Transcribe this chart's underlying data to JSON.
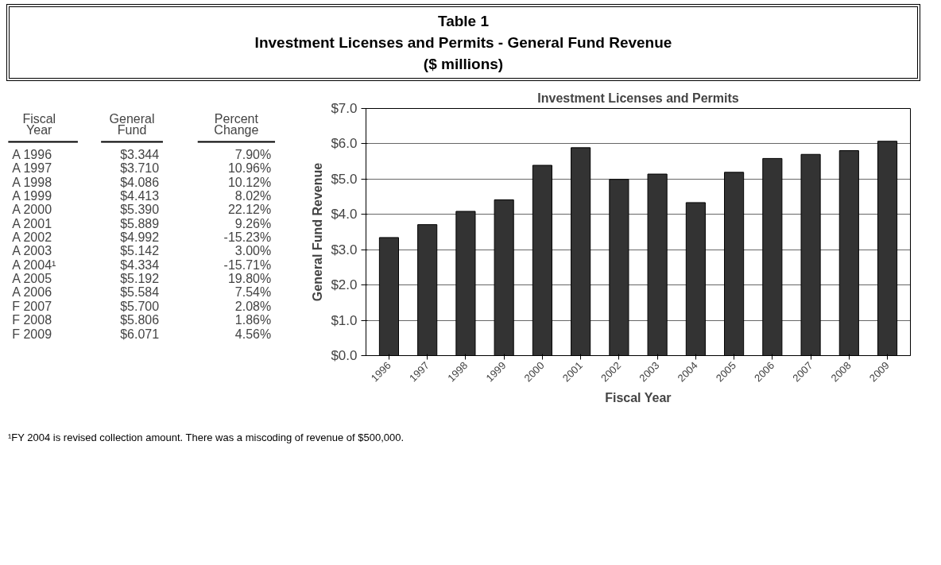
{
  "chart_data": {
    "type": "bar",
    "title": "Table 1\nInvestment Licenses and Permits - General Fund Revenue\n($ millions)",
    "subtitle": "Investment Licenses and Permits",
    "xlabel": "Fiscal Year",
    "ylabel": "General Fund Revenue",
    "categories": [
      "1996",
      "1997",
      "1998",
      "1999",
      "2000",
      "2001",
      "2002",
      "2003",
      "2004",
      "2005",
      "2006",
      "2007",
      "2008",
      "2009"
    ],
    "values": [
      3.344,
      3.71,
      4.086,
      4.413,
      5.39,
      5.889,
      4.992,
      5.142,
      4.334,
      5.192,
      5.584,
      5.7,
      5.806,
      6.071
    ],
    "color": "#333333",
    "ylim": [
      0,
      7
    ],
    "yticks": [
      {
        "value": 0,
        "label": "$0.0"
      },
      {
        "value": 1,
        "label": "$1.0"
      },
      {
        "value": 2,
        "label": "$2.0"
      },
      {
        "value": 3,
        "label": "$3.0"
      },
      {
        "value": 4,
        "label": "$4.0"
      },
      {
        "value": 5,
        "label": "$5.0"
      },
      {
        "value": 6,
        "label": "$6.0"
      },
      {
        "value": 7,
        "label": "$7.0"
      }
    ],
    "grid": "y",
    "annotations": [
      "Fiscal Year",
      "General Fund",
      "Percent Change",
      "$3.344",
      "$3.710",
      "$4.086",
      "$4.413",
      "$5.390",
      "$5.889",
      "$4.992",
      "$5.142",
      "$4.334",
      "$5.192",
      "$5.584",
      "$5.700",
      "$5.806",
      "$6.071",
      "7.90%",
      "10.96%",
      "10.12%",
      "8.02%",
      "22.12%",
      "9.26%",
      "-15.23%",
      "3.00%",
      "-15.71%",
      "19.80%",
      "7.54%",
      "2.08%",
      "1.86%",
      "4.56%",
      "A 1996",
      "A 1997",
      "A 1998",
      "A 1999",
      "A 2000",
      "A 2001",
      "A 2002",
      "A 2003",
      "A 2004¹",
      "A 2005",
      "A 2006",
      "F 2007",
      "F 2008",
      "F 2009",
      "¹FY 2004 is revised collection amount.  There was a miscoding of revenue of $500,000."
    ]
  }
}
